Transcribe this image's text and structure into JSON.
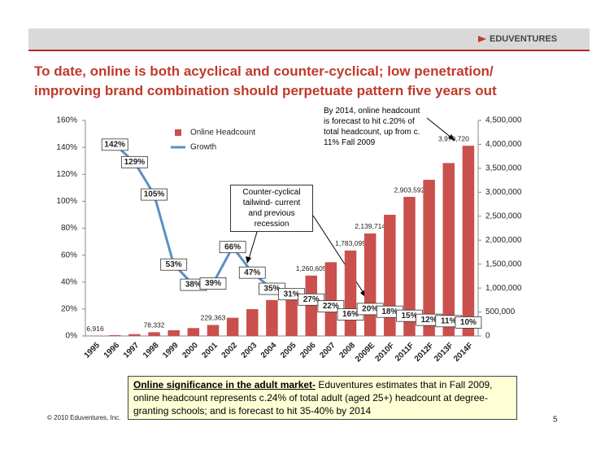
{
  "header": {
    "logo": "EDUVENTURES"
  },
  "chart_data": {
    "type": "bar",
    "title_lines": [
      "To date, online is both acyclical and counter-cyclical; low penetration/",
      "improving brand combination should perpetuate pattern five years out"
    ],
    "categories": [
      "1995",
      "1996",
      "1997",
      "1998",
      "1999",
      "2000",
      "2001",
      "2002",
      "2003",
      "2004",
      "2005",
      "2006",
      "2007",
      "2008",
      "2009E",
      "2010F",
      "2011F",
      "2012F",
      "2013F",
      "2014F"
    ],
    "series": [
      {
        "name": "Online Headcount",
        "type": "bar",
        "axis": "y2",
        "color": "#c9504c",
        "values": [
          6916,
          16700,
          38200,
          78332,
          120000,
          165000,
          229363,
          380000,
          560000,
          750000,
          985000,
          1260605,
          1540000,
          1783095,
          2139714,
          2530000,
          2903592,
          3260000,
          3610000,
          3970720
        ],
        "value_labels": [
          "6,916",
          null,
          null,
          "78,332",
          null,
          null,
          "229,363",
          null,
          null,
          null,
          null,
          "1,260,605",
          null,
          "1,783,095",
          "2,139,714",
          null,
          "2,903,592",
          null,
          null,
          "3,970,720"
        ]
      },
      {
        "name": "Growth",
        "type": "line",
        "axis": "y",
        "color": "#5b8fc7",
        "values": [
          null,
          142,
          129,
          105,
          53,
          38,
          39,
          66,
          47,
          35,
          31,
          27,
          22,
          16,
          20,
          18,
          15,
          12,
          11,
          10
        ],
        "value_labels": [
          null,
          "142%",
          "129%",
          "105%",
          "53%",
          "38%",
          "39%",
          "66%",
          "47%",
          "35%",
          "31%",
          "27%",
          "22%",
          "16%",
          "20%",
          "18%",
          "15%",
          "12%",
          "11%",
          "10%"
        ]
      }
    ],
    "ylim": [
      0,
      160
    ],
    "yticks": [
      {
        "value": 0,
        "label": "0%"
      },
      {
        "value": 20,
        "label": "20%"
      },
      {
        "value": 40,
        "label": "40%"
      },
      {
        "value": 60,
        "label": "60%"
      },
      {
        "value": 80,
        "label": "80%"
      },
      {
        "value": 100,
        "label": "100%"
      },
      {
        "value": 120,
        "label": "120%"
      },
      {
        "value": 140,
        "label": "140%"
      },
      {
        "value": 160,
        "label": "160%"
      }
    ],
    "y2lim": [
      0,
      4500000
    ],
    "y2ticks": [
      0,
      {
        "value": 500000,
        "label": "500,000"
      },
      {
        "value": 1000000,
        "label": "1,000,000"
      },
      {
        "value": 1500000,
        "label": "1,500,000"
      },
      {
        "value": 2000000,
        "label": "2,000,000"
      },
      {
        "value": 2500000,
        "label": "2,500,000"
      },
      {
        "value": 3000000,
        "label": "3,000,000"
      },
      {
        "value": 3500000,
        "label": "3,500,000"
      },
      {
        "value": 4000000,
        "label": "4,000,000"
      },
      {
        "value": 4500000,
        "label": "4,500,000"
      }
    ],
    "annotations": [
      "By 2014, online headcount is forecast to hit c.20% of total headcount, up from c. 11% Fall 2009",
      "Counter-cyclical tailwind- current and previous recession"
    ]
  },
  "footnote": {
    "lead": "Online significance in the adult market-",
    "text": " Eduventures estimates that in Fall 2009, online headcount represents c.24% of total adult (aged 25+) headcount at degree-granting schools; and is forecast to hit 35-40% by 2014"
  },
  "footer": {
    "copyright": "© 2010 Eduventures, Inc.",
    "page": "5"
  }
}
